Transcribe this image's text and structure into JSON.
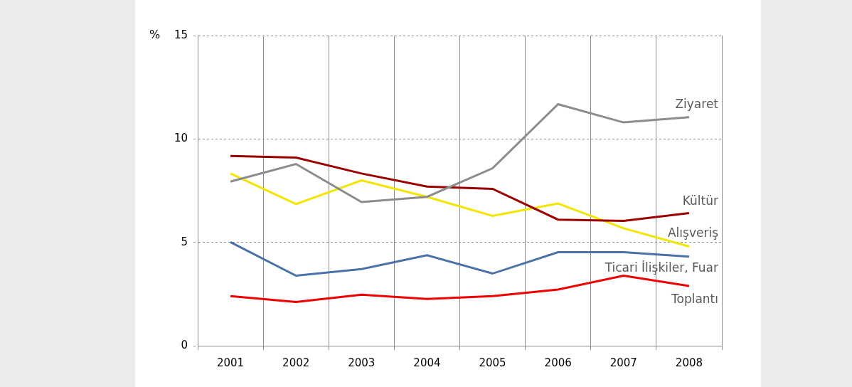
{
  "chart_data": {
    "type": "line",
    "y_label": "%",
    "categories": [
      "2001",
      "2002",
      "2003",
      "2004",
      "2005",
      "2006",
      "2007",
      "2008"
    ],
    "series": [
      {
        "name": "Ziyaret",
        "color": "#8c8c8c",
        "values": [
          7.94,
          8.79,
          6.95,
          7.2,
          8.58,
          11.68,
          10.8,
          11.05
        ]
      },
      {
        "name": "Kültür",
        "color": "#9b0000",
        "values": [
          9.18,
          9.1,
          8.33,
          7.7,
          7.59,
          6.1,
          6.04,
          6.42
        ]
      },
      {
        "name": "Alışveriş",
        "color": "#f2e600",
        "values": [
          8.33,
          6.85,
          8.0,
          7.2,
          6.28,
          6.88,
          5.68,
          4.8
        ]
      },
      {
        "name": "Ticari İlişkiler, Fuar",
        "color": "#4a72a8",
        "values": [
          5.01,
          3.39,
          3.71,
          4.38,
          3.49,
          4.52,
          4.52,
          4.31
        ]
      },
      {
        "name": "Toplantı",
        "color": "#f00000",
        "values": [
          2.4,
          2.12,
          2.47,
          2.26,
          2.4,
          2.72,
          3.39,
          2.89
        ]
      }
    ],
    "ylim": [
      0,
      15
    ],
    "yticks": [
      0,
      5,
      10,
      15
    ],
    "grid": true
  }
}
